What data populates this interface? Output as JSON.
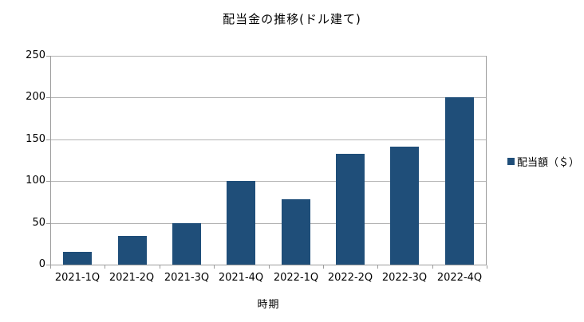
{
  "title": "配当金の推移(ドル建て)",
  "legend": {
    "label": "配当額（＄）"
  },
  "colors": {
    "bar": "#1F4E79",
    "gridline": "#B3B3B3",
    "axis": "#9C9C9C",
    "text": "#000000",
    "background": "#FFFFFF"
  },
  "chart_data": {
    "type": "bar",
    "title": "配当金の推移(ドル建て)",
    "categories": [
      "2021-1Q",
      "2021-2Q",
      "2021-3Q",
      "2021-4Q",
      "2022-1Q",
      "2022-2Q",
      "2022-3Q",
      "2022-4Q"
    ],
    "series": [
      {
        "name": "配当額（＄）",
        "values": [
          15,
          34,
          50,
          100,
          78,
          133,
          141,
          200
        ]
      }
    ],
    "xlabel": "時期",
    "ylabel": "",
    "ylim": [
      0,
      250
    ],
    "ytick_step": 50,
    "yticks": [
      0,
      50,
      100,
      150,
      200,
      250
    ],
    "grid": true,
    "legend_position": "right"
  }
}
